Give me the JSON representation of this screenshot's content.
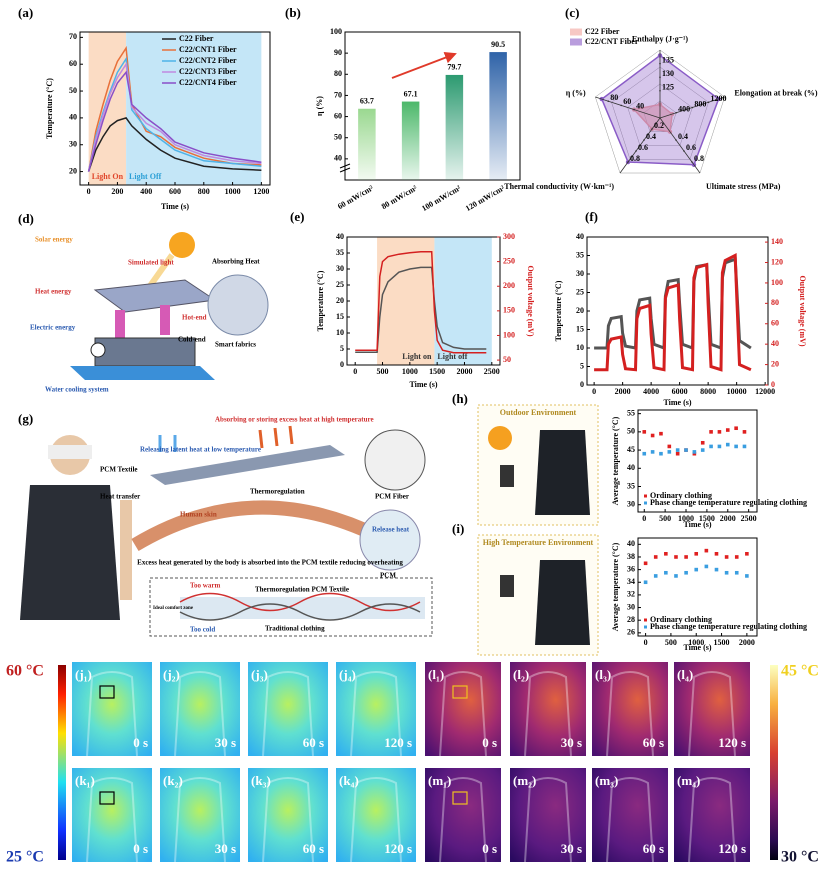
{
  "chart_data": [
    {
      "panel": "(a)",
      "type": "line",
      "xlabel": "Time (s)",
      "ylabel": "Temperature (°C)",
      "xlim": [
        -60,
        1260
      ],
      "xticks": [
        0,
        200,
        400,
        600,
        800,
        1000,
        1200
      ],
      "ylim": [
        15,
        72
      ],
      "yticks": [
        20,
        30,
        40,
        50,
        60,
        70
      ],
      "shading": [
        {
          "label": "Light On",
          "range": [
            0,
            260
          ],
          "color": "#fbdcc4",
          "text_color": "#e0452a"
        },
        {
          "label": "Light Off",
          "range": [
            260,
            1200
          ],
          "color": "#c4e6f7",
          "text_color": "#2a9fd6"
        }
      ],
      "legend": "upper-right",
      "x": [
        0,
        50,
        100,
        150,
        200,
        260,
        300,
        400,
        500,
        600,
        800,
        1000,
        1200
      ],
      "series": [
        {
          "name": "C22 Fiber",
          "color": "#222222",
          "values": [
            20,
            28,
            33,
            37,
            39,
            40,
            37,
            32,
            28,
            25,
            22,
            21,
            20.5
          ]
        },
        {
          "name": "C22/CNT1 Fiber",
          "color": "#e8703a",
          "values": [
            20,
            35,
            45,
            54,
            61,
            66,
            45,
            35,
            33,
            29,
            25,
            23,
            22.5
          ]
        },
        {
          "name": "C22/CNT2 Fiber",
          "color": "#4fb3e8",
          "values": [
            20,
            33,
            42,
            50,
            57,
            62,
            43,
            36,
            32,
            28,
            24,
            23,
            22
          ]
        },
        {
          "name": "C22/CNT3 Fiber",
          "color": "#c08ae0",
          "values": [
            20,
            32,
            41,
            49,
            55,
            60,
            44,
            38,
            35,
            30,
            26,
            24,
            23
          ]
        },
        {
          "name": "C22/CNT4 Fiber",
          "color": "#8a4fc8",
          "values": [
            20,
            30,
            39,
            47,
            53,
            57,
            45,
            40,
            36,
            31,
            27,
            25,
            23.5
          ]
        }
      ]
    },
    {
      "panel": "(b)",
      "type": "bar",
      "ylabel": "η (%)",
      "categories": [
        "60 mW/cm²",
        "80 mW/cm²",
        "100 mW/cm²",
        "120 mW/cm²"
      ],
      "values": [
        63.7,
        67.1,
        79.7,
        90.5
      ],
      "colors": [
        "#9ad890",
        "#4cb86a",
        "#2c9a70",
        "#2f63a8"
      ],
      "ylim": [
        30,
        100
      ],
      "yticks": [
        40,
        50,
        60,
        70,
        80,
        90,
        100
      ]
    },
    {
      "panel": "(c)",
      "type": "radar",
      "legend": "upper-left",
      "axes": [
        {
          "label": "Enthalpy (J·g⁻¹)",
          "lim": [
            115,
            140
          ],
          "ticks": [
            125,
            130,
            135
          ]
        },
        {
          "label": "Elongation at break (%)",
          "lim": [
            0,
            1600
          ],
          "ticks": [
            400,
            800,
            1200
          ]
        },
        {
          "label": "Ultimate stress (MPa)",
          "lim": [
            0,
            1
          ],
          "ticks": [
            0.4,
            0.6,
            0.8
          ]
        },
        {
          "label": "Thermal conductivity (W·km⁻¹)",
          "lim": [
            0,
            1
          ],
          "ticks": [
            0.2,
            0.4,
            0.6,
            0.8
          ]
        },
        {
          "label": "η (%)",
          "lim": [
            0,
            100
          ],
          "ticks": [
            40,
            60,
            80
          ]
        }
      ],
      "series": [
        {
          "name": "C22 Fiber",
          "color": "#f2a49c",
          "values": [
            120,
            300,
            0.25,
            0.2,
            40
          ]
        },
        {
          "name": "C22/CNT Fiber",
          "color": "#8a5cc7",
          "values": [
            138,
            1450,
            0.85,
            0.8,
            90
          ]
        }
      ]
    },
    {
      "panel": "(e)",
      "type": "line",
      "xlabel": "Time (s)",
      "ylabel": "Temperature (°C)",
      "y2label": "Output voltage (mV)",
      "xlim": [
        -150,
        2650
      ],
      "xticks": [
        0,
        500,
        1000,
        1500,
        2000,
        2500
      ],
      "ylim": [
        0,
        40
      ],
      "yticks": [
        0,
        5,
        10,
        15,
        20,
        25,
        30,
        35,
        40
      ],
      "y2lim": [
        40,
        300
      ],
      "y2ticks": [
        50,
        100,
        150,
        200,
        250,
        300
      ],
      "y2color": "#d42020",
      "shading": [
        {
          "label": "Light on",
          "range": [
            400,
            1450
          ],
          "color": "#fbdcc4",
          "text_color": "#333333"
        },
        {
          "label": "Light off",
          "range": [
            1450,
            2500
          ],
          "color": "#c4e6f7",
          "text_color": "#333333"
        }
      ],
      "x": [
        0,
        300,
        400,
        450,
        500,
        600,
        800,
        1000,
        1200,
        1400,
        1450,
        1500,
        1600,
        1800,
        2000,
        2400
      ],
      "series": [
        {
          "color": "#555555",
          "values": [
            4,
            4,
            4,
            15,
            22,
            26,
            29,
            30,
            30.5,
            30.5,
            20,
            12,
            7,
            5.5,
            5,
            5
          ]
        },
        {
          "color": "#d42020",
          "axis": "y2",
          "values": [
            70,
            70,
            70,
            220,
            250,
            260,
            265,
            268,
            270,
            270,
            150,
            90,
            70,
            65,
            65,
            65
          ]
        }
      ]
    },
    {
      "panel": "(f)",
      "type": "line",
      "xlabel": "Time (s)",
      "ylabel": "Temperature (°C)",
      "y2label": "Output voltage (mV)",
      "xlim": [
        -500,
        12200
      ],
      "xticks": [
        0,
        2000,
        4000,
        6000,
        8000,
        10000,
        12000
      ],
      "ylim": [
        0,
        40
      ],
      "yticks": [
        0,
        5,
        10,
        15,
        20,
        25,
        30,
        35,
        40
      ],
      "y2lim": [
        0,
        145
      ],
      "y2ticks": [
        0,
        20,
        40,
        60,
        80,
        100,
        120,
        140
      ],
      "y2color": "#d42020",
      "x": [
        0,
        900,
        1000,
        1200,
        1900,
        2000,
        2200,
        2900,
        3000,
        3200,
        3900,
        4000,
        4200,
        4900,
        5000,
        5200,
        5900,
        6000,
        6200,
        6900,
        7000,
        7200,
        7900,
        8000,
        8200,
        8900,
        9000,
        9200,
        9900,
        10000,
        10200,
        11000
      ],
      "series": [
        {
          "color": "#555555",
          "values": [
            10,
            10,
            16,
            18,
            18.5,
            14,
            10.5,
            10,
            20,
            23,
            23.5,
            18,
            11,
            10,
            24,
            28,
            28.5,
            22,
            11,
            10,
            28,
            32,
            32.5,
            25,
            11,
            10,
            29,
            33,
            34,
            27,
            12,
            10
          ]
        },
        {
          "color": "#d42020",
          "axis": "y2",
          "values": [
            15,
            15,
            40,
            45,
            47,
            30,
            16,
            15,
            65,
            75,
            78,
            50,
            17,
            15,
            85,
            95,
            98,
            65,
            17,
            15,
            105,
            115,
            118,
            80,
            18,
            15,
            110,
            122,
            127,
            90,
            20,
            15
          ]
        }
      ]
    },
    {
      "panel": "(h)",
      "type": "scatter",
      "subtitle": "Outdoor Environment",
      "xlabel": "Time (s)",
      "ylabel": "Average temperature (°C)",
      "xlim": [
        -150,
        2700
      ],
      "xticks": [
        0,
        500,
        1000,
        1500,
        2000,
        2500
      ],
      "ylim": [
        28,
        56
      ],
      "yticks": [
        30,
        35,
        40,
        45,
        50,
        55
      ],
      "legend": "lower-left",
      "x": [
        0,
        200,
        400,
        600,
        800,
        1000,
        1200,
        1400,
        1600,
        1800,
        2000,
        2200,
        2400
      ],
      "series": [
        {
          "name": "Ordinary clothing",
          "color": "#e02020",
          "values": [
            50,
            49,
            49.5,
            46,
            44,
            45,
            44,
            47,
            50,
            50,
            50.5,
            51,
            50
          ]
        },
        {
          "name": "Phase change temperature regulating clothing",
          "color": "#3a9ee0",
          "values": [
            44,
            44.5,
            44,
            44.5,
            45,
            45,
            44.5,
            45,
            46,
            46,
            46.5,
            46,
            46
          ]
        }
      ]
    },
    {
      "panel": "(i)",
      "type": "scatter",
      "subtitle": "High Temperature Environment",
      "xlabel": "Time (s)",
      "ylabel": "Average temperature (°C)",
      "xlim": [
        -150,
        2200
      ],
      "xticks": [
        0,
        500,
        1000,
        1500,
        2000
      ],
      "ylim": [
        25.5,
        41
      ],
      "yticks": [
        26,
        28,
        30,
        32,
        34,
        36,
        38,
        40
      ],
      "legend": "lower-left",
      "x": [
        0,
        200,
        400,
        600,
        800,
        1000,
        1200,
        1400,
        1600,
        1800,
        2000
      ],
      "series": [
        {
          "name": "Ordinary clothing",
          "color": "#e02020",
          "values": [
            37,
            38,
            38.5,
            38,
            38,
            38.5,
            39,
            38.5,
            38,
            38,
            38.5
          ]
        },
        {
          "name": "Phase change temperature regulating clothing",
          "color": "#3a9ee0",
          "values": [
            34,
            35,
            35.5,
            35,
            35.5,
            36,
            36.5,
            36,
            35.5,
            35.5,
            35
          ]
        }
      ]
    }
  ],
  "diagram_d": {
    "panel": "(d)",
    "labels": [
      "Solar energy",
      "Heat energy",
      "Electric energy",
      "Simulated light",
      "Absorbing Heat",
      "Hot-end",
      "Cold-end",
      "Smart fabrics",
      "Water cooling system"
    ]
  },
  "diagram_g": {
    "panel": "(g)",
    "labels": [
      "Releasing latent heat at low temperature",
      "Absorbing or storing excess heat at high temperature",
      "PCM Textile",
      "Heat transfer",
      "Human skin",
      "Thermoregulation",
      "PCM Fiber",
      "Release heat",
      "PCM",
      "Excess heat generated by the body is absorbed into the PCM textile reducing overheating",
      "Too warm",
      "Thermoregulation PCM Textile",
      "Ideal comfort zone",
      "Too cold",
      "Traditional clothing"
    ]
  },
  "thermal": {
    "scale_left": [
      "60 °C",
      "25 °C"
    ],
    "scale_right": [
      "45 °C",
      "30 °C"
    ],
    "times": [
      "0 s",
      "30 s",
      "60 s",
      "120 s"
    ],
    "rows": [
      [
        "(j₁)",
        "(j₂)",
        "(j₃)",
        "(j₄)"
      ],
      [
        "(k₁)",
        "(k₂)",
        "(k₃)",
        "(k₄)"
      ],
      [
        "(l₁)",
        "(l₂)",
        "(l₃)",
        "(l₄)"
      ],
      [
        "(m₁)",
        "(m₂)",
        "(m₃)",
        "(m₄)"
      ]
    ]
  }
}
